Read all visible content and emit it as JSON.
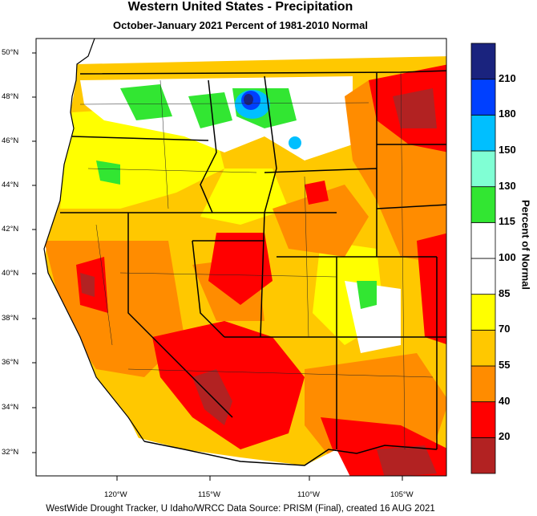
{
  "title": "Western United States - Precipitation",
  "subtitle": "October-January 2021  Percent of 1981-2010 Normal",
  "footer": "WestWide Drought Tracker, U Idaho/WRCC Data Source: PRISM (Final), created 16 AUG 2021",
  "legend": {
    "title": "Percent of Normal",
    "bins": [
      {
        "label": "20",
        "color": "#b22222"
      },
      {
        "label": "40",
        "color": "#ff0000"
      },
      {
        "label": "55",
        "color": "#ff8c00"
      },
      {
        "label": "70",
        "color": "#ffc800"
      },
      {
        "label": "85",
        "color": "#ffff00"
      },
      {
        "label": "100",
        "color": "#ffffff"
      },
      {
        "label": "115",
        "color": "#ffffff"
      },
      {
        "label": "130",
        "color": "#32e632"
      },
      {
        "label": "150",
        "color": "#80ffd4"
      },
      {
        "label": "180",
        "color": "#00bfff"
      },
      {
        "label": "210",
        "color": "#0040ff"
      },
      {
        "label": "",
        "color": "#1a237e"
      }
    ]
  },
  "axes": {
    "lat": [
      "50°N",
      "48°N",
      "46°N",
      "44°N",
      "42°N",
      "40°N",
      "38°N",
      "36°N",
      "34°N",
      "32°N"
    ],
    "lon": [
      "120°W",
      "115°W",
      "110°W",
      "105°W"
    ]
  }
}
